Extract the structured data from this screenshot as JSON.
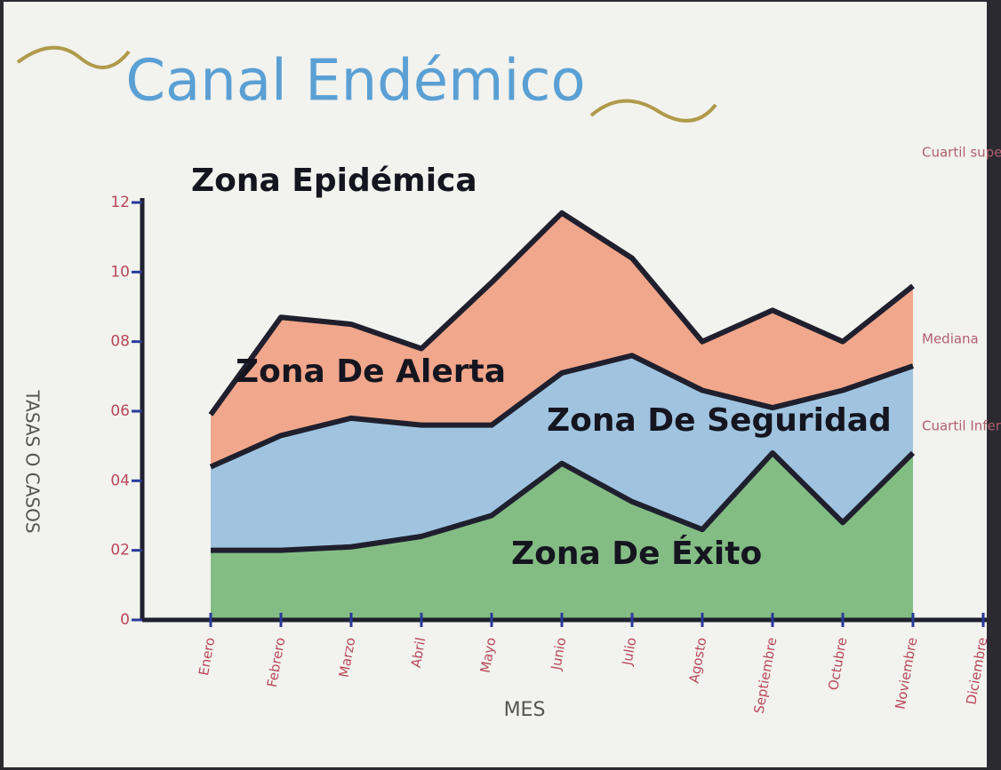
{
  "chart_data": {
    "type": "line",
    "title": "Canal Endémico",
    "x_label": "MES",
    "y_label": "TASAS O CASOS",
    "categories": [
      "Enero",
      "Febrero",
      "Marzo",
      "Abril",
      "Mayo",
      "Junio",
      "Julio",
      "Agosto",
      "Septiembre",
      "Octubre",
      "Noviembre",
      "Diciembre"
    ],
    "series": [
      {
        "name": "Cuartil superior",
        "color": "#1f1f2e",
        "values": [
          5.9,
          8.7,
          8.5,
          7.8,
          9.7,
          11.7,
          10.4,
          8.0,
          8.9,
          8.0,
          9.6,
          null
        ]
      },
      {
        "name": "Mediana",
        "color": "#1f1f2e",
        "values": [
          4.4,
          5.3,
          5.8,
          5.6,
          5.6,
          7.1,
          7.6,
          6.6,
          6.1,
          6.6,
          7.3,
          null
        ]
      },
      {
        "name": "Cuartil Inferior",
        "color": "#1f1f2e",
        "values": [
          2.0,
          2.0,
          2.1,
          2.4,
          3.0,
          4.5,
          3.4,
          2.6,
          4.8,
          2.8,
          4.8,
          null
        ]
      }
    ],
    "zone_colors": [
      "#f06a3a",
      "#5d9fd6",
      "#3a9a3e"
    ],
    "annotations": [
      "Zona Epidémica",
      "Zona De Alerta",
      "Zona De Seguridad",
      "Zona De Éxito"
    ],
    "ylim": [
      0,
      12
    ],
    "yticks": [
      0,
      {
        "value": 2,
        "label": "02"
      },
      {
        "value": 4,
        "label": "04"
      },
      {
        "value": 6,
        "label": "06"
      },
      {
        "value": 8,
        "label": "08"
      },
      10,
      12
    ],
    "grid": false
  }
}
